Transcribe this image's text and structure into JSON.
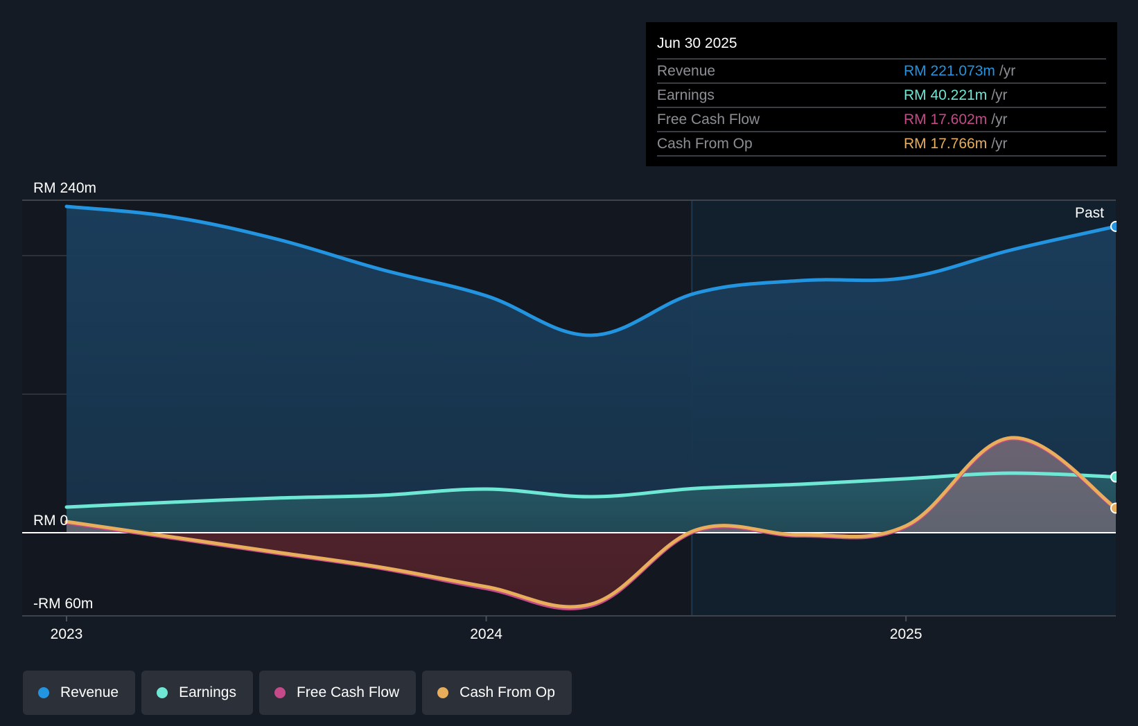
{
  "tooltip": {
    "date": "Jun 30 2025",
    "rows": [
      {
        "label": "Revenue",
        "value": "RM 221.073m",
        "unit": "/yr",
        "color": "#2394df"
      },
      {
        "label": "Earnings",
        "value": "RM 40.221m",
        "unit": "/yr",
        "color": "#6ee7d4"
      },
      {
        "label": "Free Cash Flow",
        "value": "RM 17.602m",
        "unit": "/yr",
        "color": "#c44a8a"
      },
      {
        "label": "Cash From Op",
        "value": "RM 17.766m",
        "unit": "/yr",
        "color": "#e8ae5c"
      }
    ]
  },
  "legend": [
    {
      "label": "Revenue",
      "color": "#2394df"
    },
    {
      "label": "Earnings",
      "color": "#6ee7d4"
    },
    {
      "label": "Free Cash Flow",
      "color": "#c44a8a"
    },
    {
      "label": "Cash From Op",
      "color": "#e8ae5c"
    }
  ],
  "chart_data": {
    "type": "area",
    "title": "",
    "xlabel": "",
    "ylabel": "",
    "currency_unit": "RM m",
    "ylim": [
      -60,
      240
    ],
    "xlim": [
      2023.0,
      2025.5
    ],
    "y_tick_labels": [
      {
        "value": 240,
        "label": "RM 240m"
      },
      {
        "value": 0,
        "label": "RM 0"
      },
      {
        "value": -60,
        "label": "-RM 60m"
      }
    ],
    "gridlines": [
      240,
      200,
      100,
      0
    ],
    "x_ticks": [
      {
        "value": 2023,
        "label": "2023"
      },
      {
        "value": 2024,
        "label": "2024"
      },
      {
        "value": 2025,
        "label": "2025"
      }
    ],
    "highlight_from": 2024.49,
    "past_label": "Past",
    "x": [
      2023.0,
      2023.25,
      2023.5,
      2023.75,
      2024.0,
      2024.25,
      2024.5,
      2024.75,
      2025.0,
      2025.25,
      2025.5
    ],
    "series": [
      {
        "name": "Revenue",
        "color": "#2394df",
        "values": [
          235.5,
          228,
          212,
          190,
          171,
          142.5,
          173,
          182,
          184,
          204,
          221.073
        ]
      },
      {
        "name": "Earnings",
        "color": "#6ee7d4",
        "values": [
          18.5,
          22,
          25,
          27,
          31.5,
          26,
          32,
          35,
          39,
          43,
          40.221
        ]
      },
      {
        "name": "Free Cash Flow",
        "color": "#c44a8a",
        "values": [
          7.5,
          -3.5,
          -14.5,
          -25.5,
          -40,
          -52.5,
          1.5,
          -2,
          4.5,
          68,
          17.602
        ]
      },
      {
        "name": "Cash From Op",
        "color": "#e8ae5c",
        "values": [
          8,
          -3,
          -14,
          -25,
          -39,
          -51.5,
          2,
          -1.5,
          5,
          68.5,
          17.766
        ]
      }
    ],
    "legend_position": "bottom-left"
  }
}
